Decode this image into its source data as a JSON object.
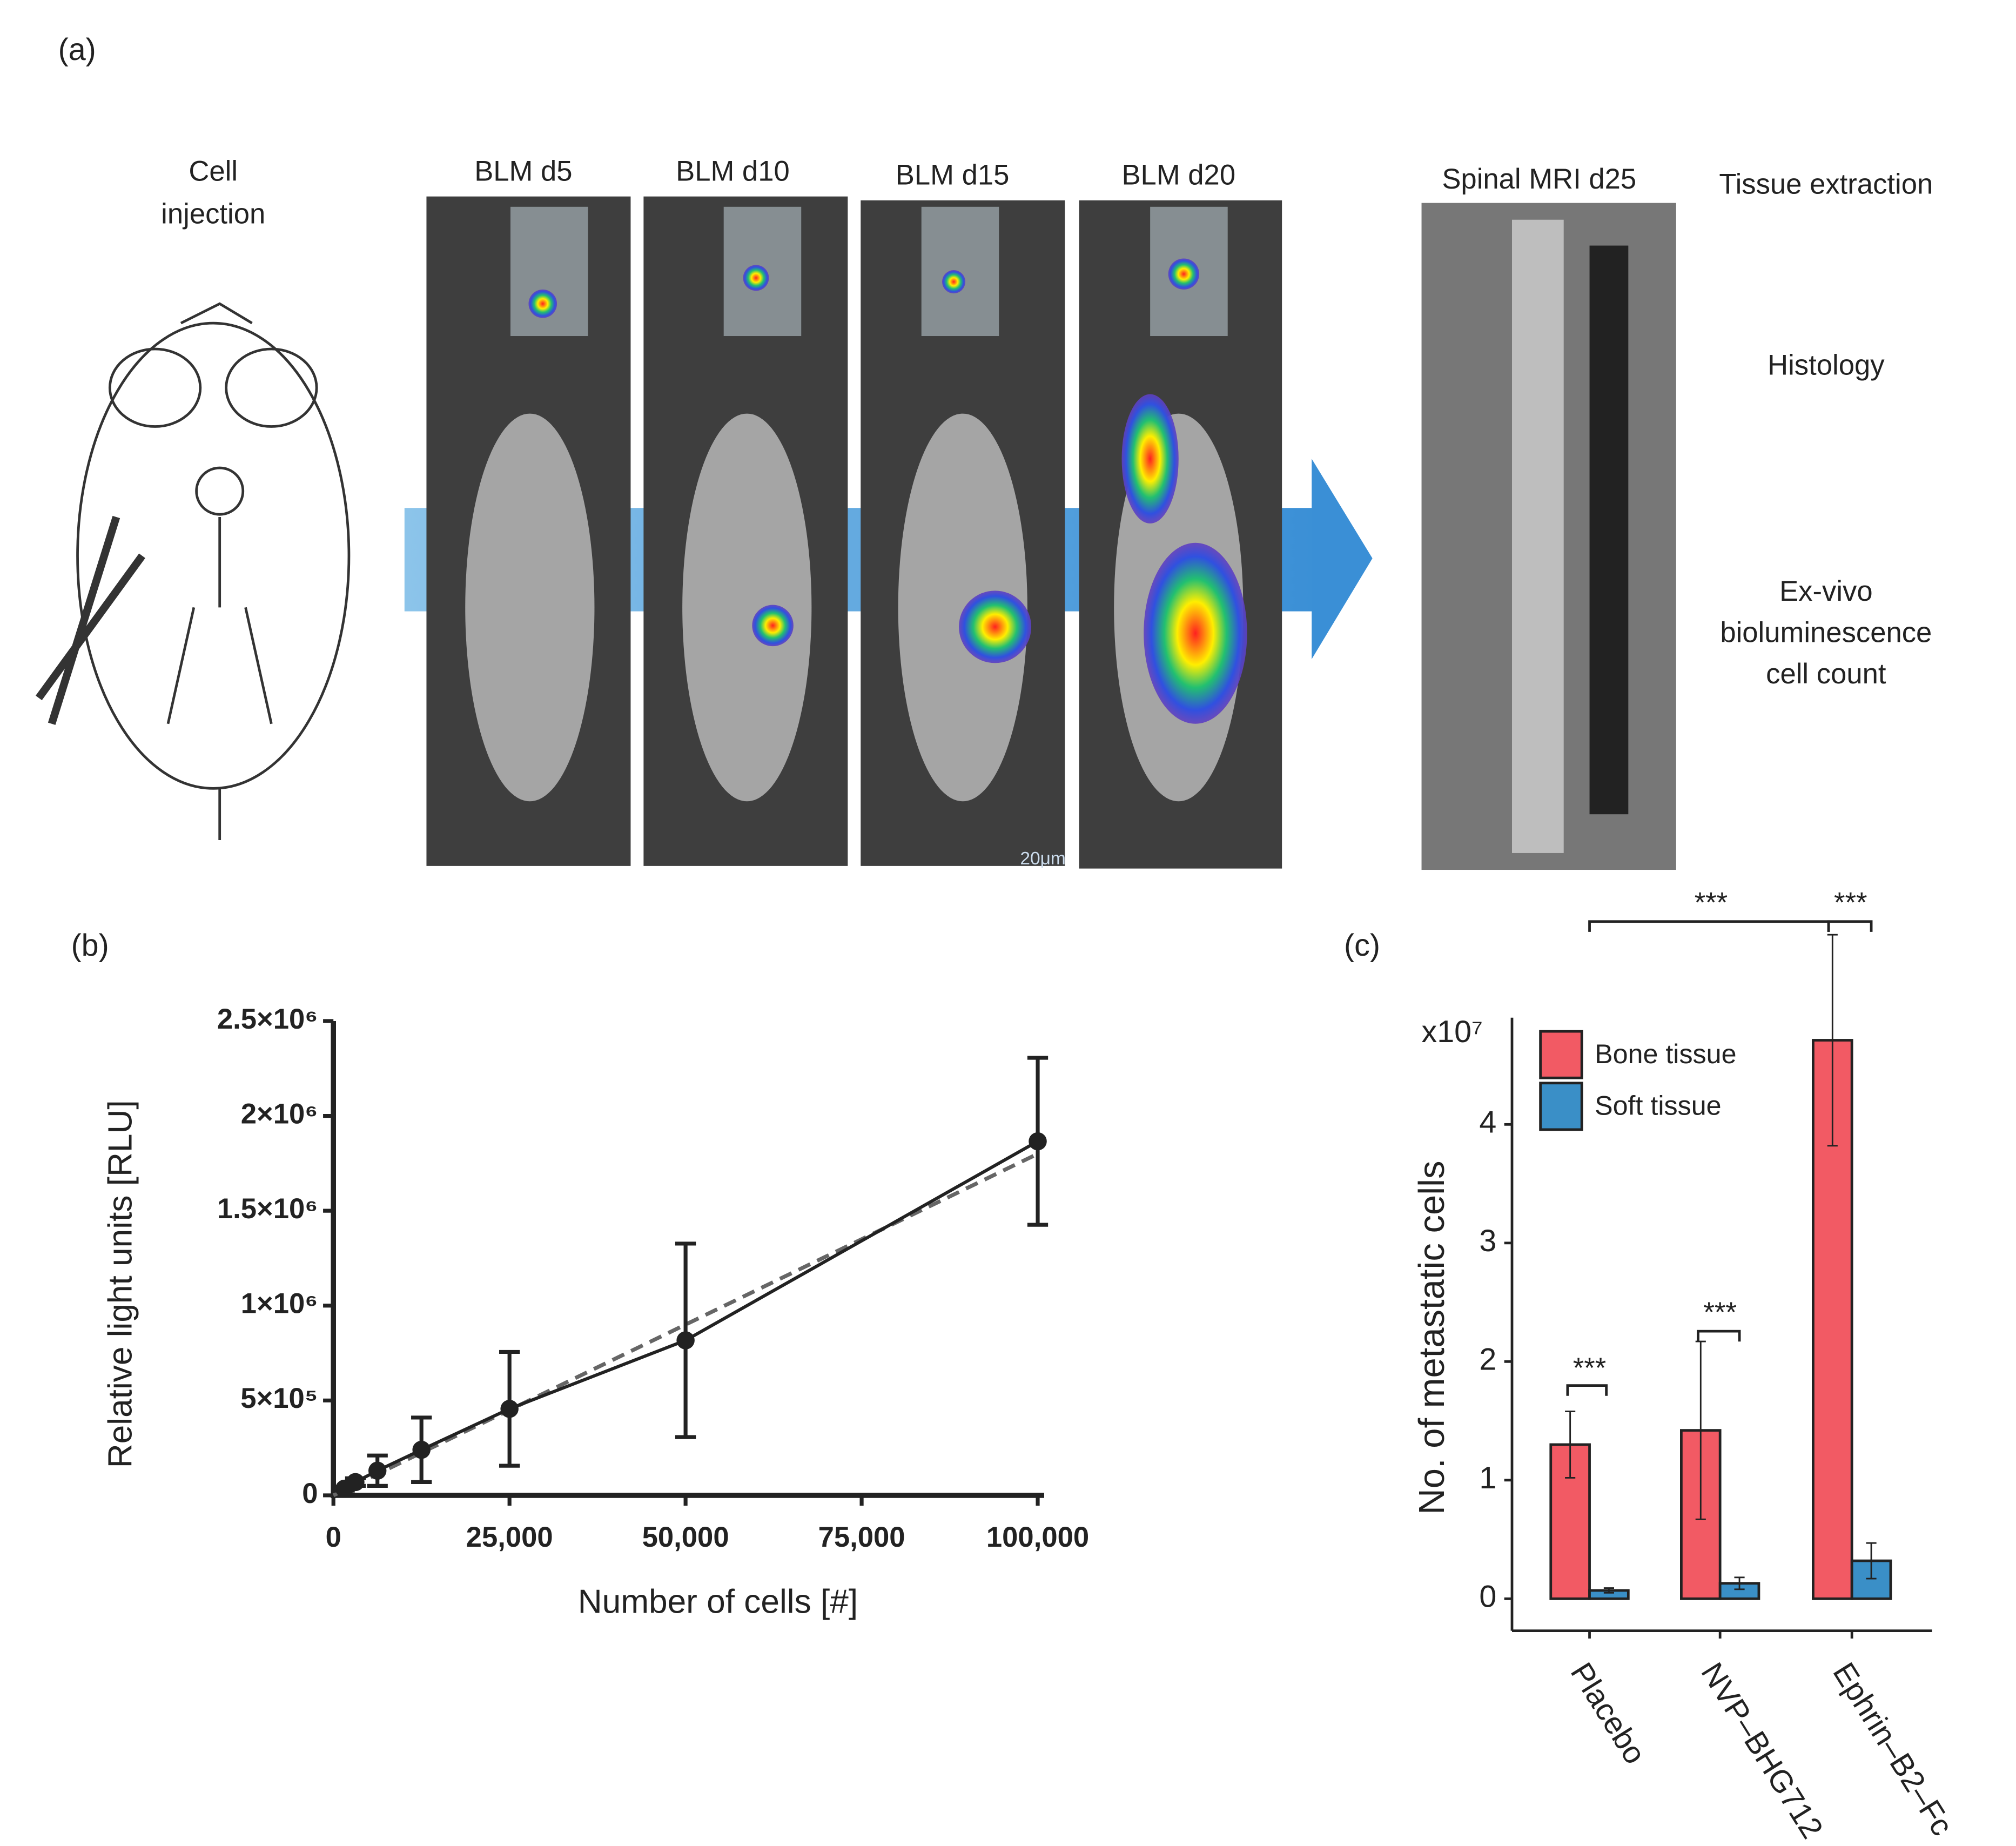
{
  "panel_labels": [
    "(a)",
    "(b)",
    "(c)"
  ],
  "panel_a": {
    "cell_injection": [
      "Cell",
      "injection"
    ],
    "timepoints": [
      "BLM d5",
      "BLM d10",
      "BLM d15",
      "BLM d20"
    ],
    "scale_bar": "20μm",
    "mri": "Spinal MRI d25",
    "steps": [
      "Tissue extraction",
      "Histology"
    ],
    "exvivo": [
      "Ex-vivo",
      "bioluminescence",
      "cell count"
    ]
  },
  "chart_data": [
    {
      "type": "line",
      "xlabel": "Number of cells [#]",
      "ylabel": "Relative light units [RLU]",
      "x": [
        1562,
        3125,
        6250,
        12500,
        25000,
        50000,
        100000
      ],
      "series": [
        {
          "color": "#222222",
          "values": [
            35000,
            70000,
            130000,
            240000,
            456000,
            817000,
            1866000
          ],
          "errors": [
            10000,
            20000,
            80000,
            170000,
            300000,
            510000,
            440000
          ]
        }
      ],
      "fit": {
        "x": [
          0,
          100000
        ],
        "values": [
          0,
          1800000
        ],
        "color": "#666666",
        "dashed": true
      },
      "xlim": [
        0,
        100000
      ],
      "xticks": [
        0,
        {
          "value": 25000,
          "label": "25,000"
        },
        {
          "value": 50000,
          "label": "50,000"
        },
        {
          "value": 75000,
          "label": "75,000"
        },
        {
          "value": 100000,
          "label": "100,000"
        }
      ],
      "ylim": [
        0,
        2500000
      ],
      "yticks": [
        0,
        {
          "value": 500000,
          "label": "5×10⁵"
        },
        {
          "value": 1000000,
          "label": "1×10⁶"
        },
        {
          "value": 1500000,
          "label": "1.5×10⁶"
        },
        {
          "value": 2000000,
          "label": "2×10⁶"
        },
        {
          "value": 2500000,
          "label": "2.5×10⁶"
        }
      ]
    },
    {
      "type": "bar",
      "ylabel": "No. of metastatic cells",
      "y_unit": "x10⁷",
      "categories": [
        "Placebo",
        "NVP–BHG712",
        "Ephrin–B2–Fc"
      ],
      "series": [
        {
          "name": "Bone tissue",
          "color": "#f25a64",
          "values": [
            1.3,
            1.42,
            4.71
          ],
          "errors": [
            0.28,
            0.75,
            0.89
          ]
        },
        {
          "name": "Soft tissue",
          "color": "#3a8fc7",
          "values": [
            0.07,
            0.13,
            0.32
          ],
          "errors": [
            0.02,
            0.05,
            0.15
          ]
        }
      ],
      "ylim": [
        -0.27,
        4.9
      ],
      "yticks": [
        0,
        1,
        2,
        3,
        4
      ],
      "legend": "upper-left",
      "annotations": [
        "***",
        "***",
        "***",
        "***",
        "***"
      ]
    }
  ]
}
